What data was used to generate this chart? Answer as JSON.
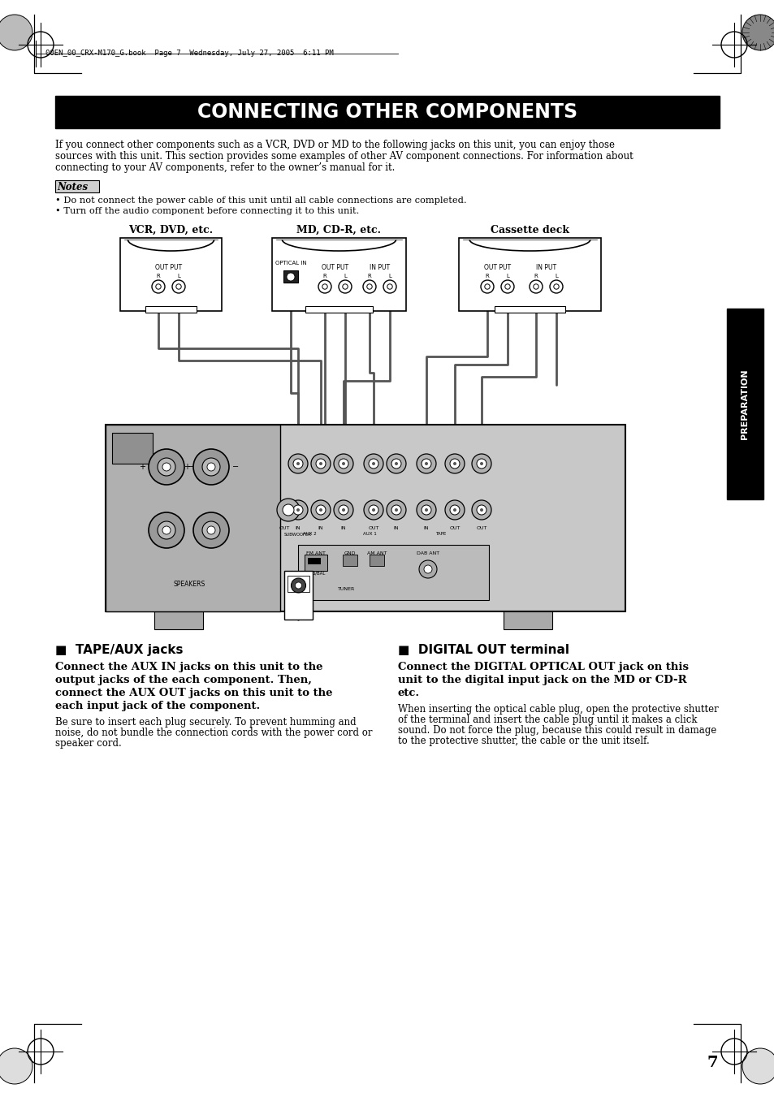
{
  "title": "CONNECTING OTHER COMPONENTS",
  "header_text": "00EN_00_CRX-M170_G.book  Page 7  Wednesday, July 27, 2005  6:11 PM",
  "intro_text": "If you connect other components such as a VCR, DVD or MD to the following jacks on this unit, you can enjoy those\nsources with this unit. This section provides some examples of other AV component connections. For information about\nconnecting to your AV components, refer to the owner’s manual for it.",
  "notes_label": "Notes",
  "note1": "• Do not connect the power cable of this unit until all cable connections are completed.",
  "note2": "• Turn off the audio component before connecting it to this unit.",
  "vcr_label": "VCR, DVD, etc.",
  "md_label": "MD, CD-R, etc.",
  "cassette_label": "Cassette deck",
  "section1_title": "■  TAPE/AUX jacks",
  "section2_title": "■  DIGITAL OUT terminal",
  "section1_bold1": "Connect the AUX IN jacks on this unit to the",
  "section1_bold2": "output jacks of the each component. Then,",
  "section1_bold3": "connect the AUX OUT jacks on this unit to the",
  "section1_bold4": "each input jack of the component.",
  "section1_normal1": "Be sure to insert each plug securely. To prevent humming and",
  "section1_normal2": "noise, do not bundle the connection cords with the power cord or",
  "section1_normal3": "speaker cord.",
  "section2_bold1": "Connect the DIGITAL OPTICAL OUT jack on this",
  "section2_bold2": "unit to the digital input jack on the MD or CD-R",
  "section2_bold3": "etc.",
  "section2_normal1": "When inserting the optical cable plug, open the protective shutter",
  "section2_normal2": "of the terminal and insert the cable plug until it makes a click",
  "section2_normal3": "sound. Do not force the plug, because this could result in damage",
  "section2_normal4": "to the protective shutter, the cable or the unit itself.",
  "page_number": "7",
  "preparation_label": "PREPARATION"
}
